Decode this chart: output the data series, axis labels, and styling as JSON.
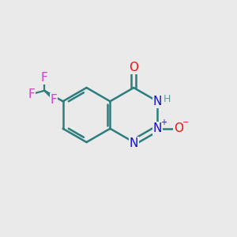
{
  "background_color": "#eaeaea",
  "bond_color": "#2d7d7d",
  "bond_width": 1.8,
  "atom_colors": {
    "O": "#ee1111",
    "N": "#1111cc",
    "F": "#cc44cc",
    "H": "#669999",
    "C": "#2d7d7d"
  },
  "font_size_atoms": 11,
  "font_size_small": 7
}
